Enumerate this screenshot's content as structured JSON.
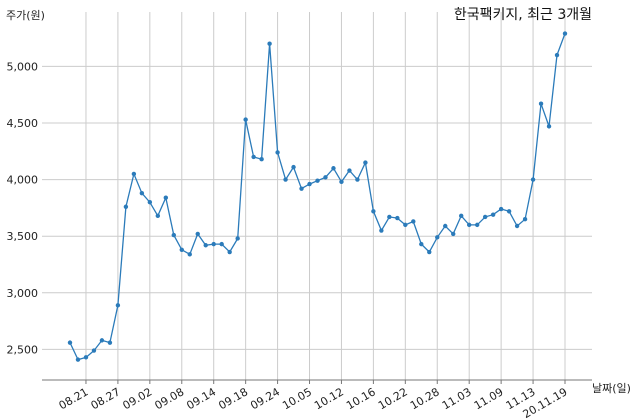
{
  "chart_data": {
    "type": "line",
    "title": "한국팩키지, 최근 3개월",
    "xlabel": "날짜(일)",
    "ylabel": "주가(원)",
    "ylim": [
      2230,
      5480
    ],
    "yticks": [
      2500,
      3000,
      3500,
      4000,
      4500,
      5000
    ],
    "ytick_labels": [
      "2,500",
      "3,000",
      "3,500",
      "4,000",
      "4,500",
      "5,000"
    ],
    "xtick_labels": [
      "08.21",
      "08.27",
      "09.02",
      "09.08",
      "09.14",
      "09.18",
      "09.24",
      "10.05",
      "10.12",
      "10.16",
      "10.22",
      "10.28",
      "11.03",
      "11.09",
      "11.13",
      "20.11.19"
    ],
    "xtick_index": [
      2,
      6,
      10,
      14,
      18,
      22,
      26,
      30,
      34,
      38,
      42,
      46,
      50,
      54,
      58,
      62
    ],
    "grid": true,
    "line_color": "#2b7bba",
    "series": [
      {
        "values": [
          2560,
          2410,
          2430,
          2490,
          2580,
          2560,
          2890,
          3760,
          4050,
          3880,
          3800,
          3680,
          3840,
          3510,
          3380,
          3340,
          3520,
          3420,
          3430,
          3430,
          3360,
          3480,
          4530,
          4200,
          4180,
          5200,
          4240,
          4000,
          4110,
          3920,
          3960,
          3990,
          4020,
          4100,
          3980,
          4080,
          4000,
          4150,
          3720,
          3550,
          3670,
          3660,
          3600,
          3630,
          3430,
          3360,
          3490,
          3590,
          3520,
          3680,
          3600,
          3600,
          3670,
          3690,
          3740,
          3720,
          3590,
          3650,
          4000,
          4670,
          4470,
          5100,
          5290
        ]
      }
    ]
  }
}
